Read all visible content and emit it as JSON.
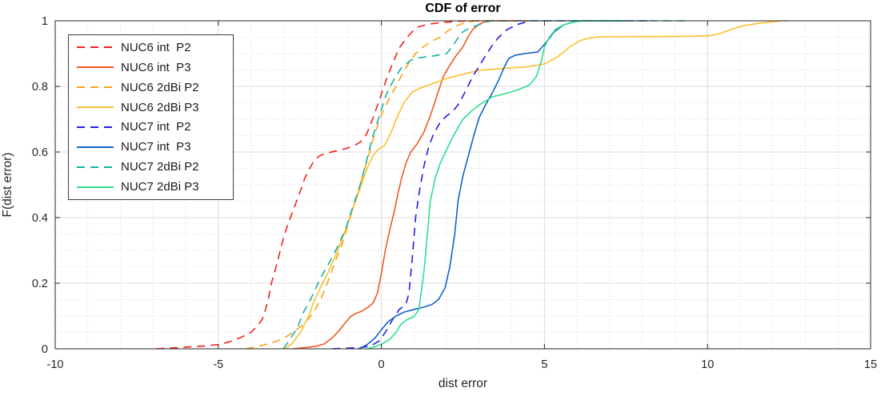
{
  "chart_data": {
    "type": "line",
    "title": "CDF of error",
    "xlabel": "dist error",
    "ylabel": "F(dist error)",
    "xlim": [
      -10,
      15
    ],
    "ylim": [
      0,
      1
    ],
    "xticks": [
      -10,
      -5,
      0,
      5,
      10,
      15
    ],
    "xtick_labels": [
      "-10",
      "-5",
      "0",
      "5",
      "10",
      "15"
    ],
    "yticks": [
      0,
      0.2,
      0.4,
      0.6,
      0.8,
      1
    ],
    "ytick_labels": [
      "0",
      "0.2",
      "0.4",
      "0.6",
      "0.8",
      "1"
    ],
    "grid": "major-solid-plus-minor-dotted",
    "minor_step_x": 1,
    "minor_step_y": 0.05,
    "legend_position": "northwest",
    "axis_color": "#262626",
    "major_grid_color": "#dcdcdc",
    "minor_grid_color": "#d6d6d6",
    "series": [
      {
        "name": "NUC6 int  P2",
        "color": "#f0231a",
        "style": "dashed",
        "points": [
          [
            -6.9,
            0
          ],
          [
            -6.2,
            0.004
          ],
          [
            -5.5,
            0.008
          ],
          [
            -5.0,
            0.013
          ],
          [
            -4.7,
            0.02
          ],
          [
            -4.3,
            0.035
          ],
          [
            -4.0,
            0.05
          ],
          [
            -3.8,
            0.07
          ],
          [
            -3.65,
            0.09
          ],
          [
            -3.55,
            0.12
          ],
          [
            -3.45,
            0.16
          ],
          [
            -3.37,
            0.2
          ],
          [
            -3.2,
            0.26
          ],
          [
            -3.05,
            0.32
          ],
          [
            -2.9,
            0.37
          ],
          [
            -2.75,
            0.41
          ],
          [
            -2.6,
            0.45
          ],
          [
            -2.45,
            0.49
          ],
          [
            -2.35,
            0.52
          ],
          [
            -2.2,
            0.55
          ],
          [
            -2.05,
            0.575
          ],
          [
            -1.9,
            0.588
          ],
          [
            -1.7,
            0.596
          ],
          [
            -1.4,
            0.603
          ],
          [
            -1.1,
            0.61
          ],
          [
            -0.85,
            0.618
          ],
          [
            -0.65,
            0.63
          ],
          [
            -0.45,
            0.655
          ],
          [
            -0.25,
            0.705
          ],
          [
            -0.05,
            0.762
          ],
          [
            0.15,
            0.82
          ],
          [
            0.35,
            0.872
          ],
          [
            0.55,
            0.917
          ],
          [
            0.75,
            0.945
          ],
          [
            0.95,
            0.967
          ],
          [
            1.15,
            0.982
          ],
          [
            1.45,
            0.99
          ],
          [
            1.9,
            0.995
          ],
          [
            2.4,
            0.999
          ],
          [
            2.7,
            1
          ],
          [
            4.2,
            1
          ]
        ]
      },
      {
        "name": "NUC6 int  P3",
        "color": "#ef5a22",
        "style": "solid",
        "points": [
          [
            -2.7,
            0
          ],
          [
            -2.3,
            0.004
          ],
          [
            -2.0,
            0.008
          ],
          [
            -1.75,
            0.015
          ],
          [
            -1.5,
            0.034
          ],
          [
            -1.3,
            0.055
          ],
          [
            -1.1,
            0.08
          ],
          [
            -0.95,
            0.098
          ],
          [
            -0.8,
            0.107
          ],
          [
            -0.6,
            0.115
          ],
          [
            -0.4,
            0.127
          ],
          [
            -0.25,
            0.14
          ],
          [
            -0.12,
            0.17
          ],
          [
            0,
            0.23
          ],
          [
            0.12,
            0.3
          ],
          [
            0.25,
            0.36
          ],
          [
            0.4,
            0.42
          ],
          [
            0.5,
            0.47
          ],
          [
            0.62,
            0.52
          ],
          [
            0.75,
            0.565
          ],
          [
            0.9,
            0.6
          ],
          [
            1.1,
            0.625
          ],
          [
            1.3,
            0.66
          ],
          [
            1.5,
            0.71
          ],
          [
            1.7,
            0.77
          ],
          [
            1.9,
            0.83
          ],
          [
            2.1,
            0.865
          ],
          [
            2.3,
            0.895
          ],
          [
            2.5,
            0.92
          ],
          [
            2.65,
            0.95
          ],
          [
            2.8,
            0.973
          ],
          [
            3.0,
            0.99
          ],
          [
            3.25,
            1
          ],
          [
            4.5,
            1
          ]
        ]
      },
      {
        "name": "NUC6 2dBi P2",
        "color": "#f9a11b",
        "style": "dashed",
        "points": [
          [
            -4.15,
            0
          ],
          [
            -3.9,
            0.005
          ],
          [
            -3.6,
            0.012
          ],
          [
            -3.3,
            0.02
          ],
          [
            -3.0,
            0.032
          ],
          [
            -2.7,
            0.05
          ],
          [
            -2.45,
            0.07
          ],
          [
            -2.2,
            0.095
          ],
          [
            -2.0,
            0.125
          ],
          [
            -1.8,
            0.165
          ],
          [
            -1.6,
            0.215
          ],
          [
            -1.4,
            0.27
          ],
          [
            -1.2,
            0.32
          ],
          [
            -1.0,
            0.385
          ],
          [
            -0.85,
            0.435
          ],
          [
            -0.7,
            0.48
          ],
          [
            -0.55,
            0.535
          ],
          [
            -0.4,
            0.585
          ],
          [
            -0.25,
            0.64
          ],
          [
            -0.1,
            0.685
          ],
          [
            0.05,
            0.725
          ],
          [
            0.25,
            0.765
          ],
          [
            0.45,
            0.8
          ],
          [
            0.65,
            0.84
          ],
          [
            0.85,
            0.872
          ],
          [
            1.05,
            0.9
          ],
          [
            1.3,
            0.922
          ],
          [
            1.55,
            0.938
          ],
          [
            1.8,
            0.95
          ],
          [
            2.05,
            0.97
          ],
          [
            2.3,
            0.985
          ],
          [
            2.6,
            0.995
          ],
          [
            2.9,
            1
          ],
          [
            4.5,
            1
          ]
        ]
      },
      {
        "name": "NUC6 2dBi P3",
        "color": "#fcbf2e",
        "style": "solid",
        "points": [
          [
            -2.95,
            0
          ],
          [
            -2.75,
            0.015
          ],
          [
            -2.6,
            0.034
          ],
          [
            -2.45,
            0.055
          ],
          [
            -2.33,
            0.08
          ],
          [
            -2.2,
            0.105
          ],
          [
            -2.1,
            0.137
          ],
          [
            -1.95,
            0.17
          ],
          [
            -1.8,
            0.2
          ],
          [
            -1.6,
            0.24
          ],
          [
            -1.4,
            0.285
          ],
          [
            -1.2,
            0.335
          ],
          [
            -1.0,
            0.39
          ],
          [
            -0.85,
            0.435
          ],
          [
            -0.7,
            0.475
          ],
          [
            -0.55,
            0.52
          ],
          [
            -0.4,
            0.558
          ],
          [
            -0.25,
            0.59
          ],
          [
            -0.1,
            0.607
          ],
          [
            0.1,
            0.62
          ],
          [
            0.3,
            0.66
          ],
          [
            0.5,
            0.71
          ],
          [
            0.7,
            0.752
          ],
          [
            0.95,
            0.783
          ],
          [
            1.2,
            0.795
          ],
          [
            1.5,
            0.806
          ],
          [
            2.0,
            0.824
          ],
          [
            2.5,
            0.837
          ],
          [
            3.0,
            0.849
          ],
          [
            3.6,
            0.854
          ],
          [
            4.4,
            0.859
          ],
          [
            5.0,
            0.868
          ],
          [
            5.4,
            0.89
          ],
          [
            5.8,
            0.922
          ],
          [
            6.1,
            0.94
          ],
          [
            6.4,
            0.948
          ],
          [
            6.7,
            0.951
          ],
          [
            8.0,
            0.952
          ],
          [
            9.5,
            0.953
          ],
          [
            10.1,
            0.955
          ],
          [
            10.4,
            0.962
          ],
          [
            10.7,
            0.973
          ],
          [
            11.1,
            0.985
          ],
          [
            11.6,
            0.993
          ],
          [
            12.0,
            0.997
          ],
          [
            12.3,
            1
          ],
          [
            12.45,
            1
          ]
        ]
      },
      {
        "name": "NUC7 int  P2",
        "color": "#251ee4",
        "style": "dashed",
        "points": [
          [
            -1.5,
            0
          ],
          [
            -0.6,
            0.004
          ],
          [
            -0.3,
            0.01
          ],
          [
            -0.05,
            0.025
          ],
          [
            0.15,
            0.055
          ],
          [
            0.35,
            0.09
          ],
          [
            0.55,
            0.12
          ],
          [
            0.75,
            0.135
          ],
          [
            0.85,
            0.17
          ],
          [
            0.95,
            0.28
          ],
          [
            1.05,
            0.4
          ],
          [
            1.15,
            0.47
          ],
          [
            1.3,
            0.555
          ],
          [
            1.45,
            0.615
          ],
          [
            1.6,
            0.655
          ],
          [
            1.8,
            0.69
          ],
          [
            2.0,
            0.71
          ],
          [
            2.2,
            0.725
          ],
          [
            2.4,
            0.75
          ],
          [
            2.6,
            0.79
          ],
          [
            2.8,
            0.83
          ],
          [
            3.0,
            0.862
          ],
          [
            3.2,
            0.895
          ],
          [
            3.4,
            0.925
          ],
          [
            3.6,
            0.95
          ],
          [
            3.85,
            0.973
          ],
          [
            4.15,
            0.988
          ],
          [
            4.55,
            1
          ],
          [
            8.2,
            1
          ]
        ]
      },
      {
        "name": "NUC7 int  P3",
        "color": "#1263c6",
        "style": "solid",
        "points": [
          [
            -0.7,
            0
          ],
          [
            -0.45,
            0.012
          ],
          [
            -0.2,
            0.032
          ],
          [
            0,
            0.058
          ],
          [
            0.2,
            0.082
          ],
          [
            0.45,
            0.1
          ],
          [
            0.7,
            0.112
          ],
          [
            1.0,
            0.12
          ],
          [
            1.3,
            0.127
          ],
          [
            1.55,
            0.135
          ],
          [
            1.75,
            0.15
          ],
          [
            1.95,
            0.185
          ],
          [
            2.1,
            0.25
          ],
          [
            2.25,
            0.35
          ],
          [
            2.35,
            0.45
          ],
          [
            2.5,
            0.527
          ],
          [
            2.68,
            0.593
          ],
          [
            2.85,
            0.656
          ],
          [
            3.0,
            0.705
          ],
          [
            3.2,
            0.745
          ],
          [
            3.4,
            0.78
          ],
          [
            3.6,
            0.82
          ],
          [
            3.75,
            0.855
          ],
          [
            3.9,
            0.885
          ],
          [
            4.1,
            0.895
          ],
          [
            4.4,
            0.9
          ],
          [
            4.8,
            0.905
          ],
          [
            5.05,
            0.934
          ],
          [
            5.3,
            0.966
          ],
          [
            5.6,
            0.988
          ],
          [
            5.95,
            0.998
          ],
          [
            6.15,
            1
          ],
          [
            7.5,
            1
          ]
        ]
      },
      {
        "name": "NUC7 2dBi P2",
        "color": "#16b2a4",
        "style": "dashed",
        "points": [
          [
            -3.0,
            0
          ],
          [
            -2.85,
            0.022
          ],
          [
            -2.7,
            0.045
          ],
          [
            -2.55,
            0.07
          ],
          [
            -2.4,
            0.11
          ],
          [
            -2.25,
            0.135
          ],
          [
            -2.1,
            0.165
          ],
          [
            -1.9,
            0.21
          ],
          [
            -1.7,
            0.245
          ],
          [
            -1.5,
            0.28
          ],
          [
            -1.3,
            0.32
          ],
          [
            -1.1,
            0.365
          ],
          [
            -0.95,
            0.41
          ],
          [
            -0.8,
            0.455
          ],
          [
            -0.62,
            0.51
          ],
          [
            -0.45,
            0.575
          ],
          [
            -0.3,
            0.635
          ],
          [
            -0.15,
            0.683
          ],
          [
            0,
            0.73
          ],
          [
            0.15,
            0.775
          ],
          [
            0.35,
            0.815
          ],
          [
            0.6,
            0.855
          ],
          [
            0.9,
            0.88
          ],
          [
            1.2,
            0.888
          ],
          [
            1.6,
            0.893
          ],
          [
            2.0,
            0.9
          ],
          [
            2.2,
            0.925
          ],
          [
            2.45,
            0.963
          ],
          [
            2.7,
            0.978
          ],
          [
            3.0,
            0.988
          ],
          [
            3.35,
            1
          ],
          [
            9.35,
            1
          ]
        ]
      },
      {
        "name": "NUC7 2dBi P3",
        "color": "#2fe08d",
        "style": "solid",
        "points": [
          [
            -0.45,
            0
          ],
          [
            -0.2,
            0.006
          ],
          [
            0,
            0.014
          ],
          [
            0.25,
            0.028
          ],
          [
            0.45,
            0.05
          ],
          [
            0.6,
            0.075
          ],
          [
            0.8,
            0.09
          ],
          [
            1.0,
            0.098
          ],
          [
            1.15,
            0.12
          ],
          [
            1.3,
            0.23
          ],
          [
            1.42,
            0.36
          ],
          [
            1.5,
            0.45
          ],
          [
            1.65,
            0.52
          ],
          [
            1.8,
            0.565
          ],
          [
            2.0,
            0.607
          ],
          [
            2.2,
            0.648
          ],
          [
            2.5,
            0.7
          ],
          [
            2.8,
            0.728
          ],
          [
            3.1,
            0.75
          ],
          [
            3.4,
            0.768
          ],
          [
            3.8,
            0.778
          ],
          [
            4.2,
            0.79
          ],
          [
            4.55,
            0.805
          ],
          [
            4.75,
            0.83
          ],
          [
            4.9,
            0.875
          ],
          [
            5.0,
            0.92
          ],
          [
            5.15,
            0.95
          ],
          [
            5.35,
            0.975
          ],
          [
            5.6,
            0.988
          ],
          [
            5.9,
            0.996
          ],
          [
            6.2,
            1
          ],
          [
            7.5,
            1
          ]
        ]
      }
    ]
  }
}
